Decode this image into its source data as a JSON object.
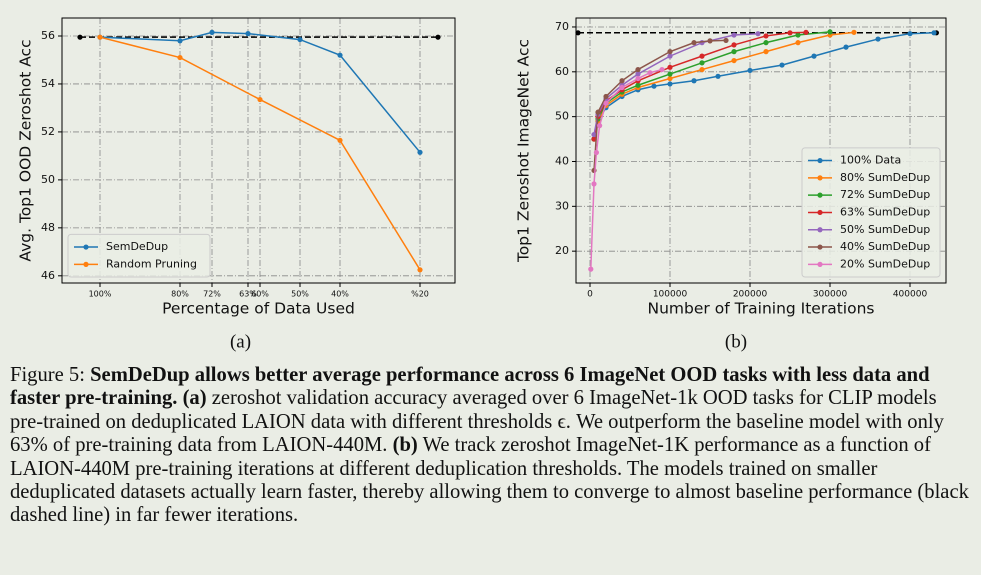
{
  "chart_data": [
    {
      "type": "line",
      "panel_label": "(a)",
      "xlabel": "Percentage of Data Used",
      "ylabel": "Avg. Top1 OOD Zeroshot Acc",
      "xlim": [
        109.5,
        11.25
      ],
      "ylim": [
        45.7,
        56.75
      ],
      "xticks": [
        {
          "value": 100,
          "label": "100%"
        },
        {
          "value": 80,
          "label": "80%"
        },
        {
          "value": 72,
          "label": "72%"
        },
        {
          "value": 63,
          "label": "63%"
        },
        {
          "value": 60,
          "label": "60%"
        },
        {
          "value": 50,
          "label": "50%"
        },
        {
          "value": 40,
          "label": "40%"
        },
        {
          "value": 20,
          "label": "%20"
        }
      ],
      "yticks": [
        46,
        48,
        50,
        52,
        54,
        56
      ],
      "grid": true,
      "legend": "lower left",
      "hline": {
        "y": 55.95,
        "x": [
          105,
          15.5
        ],
        "color": "#000000"
      },
      "series": [
        {
          "name": "SemDeDup",
          "color": "#1f77b4",
          "x": [
            100,
            80,
            72,
            63,
            50,
            40,
            20
          ],
          "values": [
            55.95,
            55.8,
            56.15,
            56.1,
            55.85,
            55.2,
            51.15
          ]
        },
        {
          "name": "Random Pruning",
          "color": "#ff7f0e",
          "x": [
            100,
            80,
            60,
            40,
            20
          ],
          "values": [
            55.95,
            55.1,
            53.35,
            51.65,
            46.25
          ]
        }
      ]
    },
    {
      "type": "line",
      "panel_label": "(b)",
      "xlabel": "Number of Training Iterations",
      "ylabel": "Top1 Zeroshot ImageNet Acc",
      "xlim": [
        -17500,
        445000
      ],
      "ylim": [
        12.9,
        72
      ],
      "xticks": [
        0,
        100000,
        200000,
        300000,
        400000
      ],
      "yticks": [
        20,
        30,
        40,
        50,
        60,
        70
      ],
      "grid": true,
      "legend": "lower right",
      "hline": {
        "y": 68.7,
        "x": [
          -15000,
          433000
        ],
        "color": "#000000"
      },
      "series": [
        {
          "name": "100% Data",
          "color": "#1f77b4",
          "x": [
            5000,
            10000,
            20000,
            40000,
            60000,
            80000,
            100000,
            130000,
            160000,
            200000,
            240000,
            280000,
            320000,
            360000,
            400000,
            430000
          ],
          "values": [
            45,
            49,
            52,
            54.5,
            56,
            56.8,
            57.3,
            58,
            59,
            60.3,
            61.5,
            63.5,
            65.5,
            67.3,
            68.5,
            68.7
          ]
        },
        {
          "name": "80% SumDeDup",
          "color": "#ff7f0e",
          "x": [
            5000,
            10000,
            20000,
            40000,
            60000,
            100000,
            140000,
            180000,
            220000,
            260000,
            300000,
            330000
          ],
          "values": [
            45,
            49,
            52.5,
            55,
            56.5,
            58.5,
            60.5,
            62.5,
            64.5,
            66.5,
            68.2,
            68.8
          ]
        },
        {
          "name": "72% SumDeDup",
          "color": "#2ca02c",
          "x": [
            5000,
            10000,
            20000,
            40000,
            60000,
            100000,
            140000,
            180000,
            220000,
            260000,
            300000
          ],
          "values": [
            45,
            49.5,
            53,
            55.5,
            57,
            59.5,
            62,
            64.5,
            66.5,
            68.2,
            68.9
          ]
        },
        {
          "name": "63% SumDeDup",
          "color": "#d62728",
          "x": [
            5000,
            10000,
            20000,
            40000,
            60000,
            100000,
            140000,
            180000,
            220000,
            250000,
            270000
          ],
          "values": [
            45,
            50,
            53.5,
            56,
            58,
            61,
            63.5,
            66,
            68,
            68.7,
            68.8
          ]
        },
        {
          "name": "50% SumDeDup",
          "color": "#9467bd",
          "x": [
            5000,
            10000,
            20000,
            40000,
            60000,
            100000,
            140000,
            180000,
            210000
          ],
          "values": [
            46,
            50.5,
            54,
            57,
            59.5,
            63.5,
            66.5,
            68.2,
            68.5
          ]
        },
        {
          "name": "40% SumDeDup",
          "color": "#8c564b",
          "x": [
            5000,
            10000,
            20000,
            40000,
            60000,
            100000,
            130000,
            150000,
            170000
          ],
          "values": [
            38,
            51,
            54.5,
            58,
            60.5,
            64.5,
            66.5,
            66.9,
            67
          ]
        },
        {
          "name": "20% SumDeDup",
          "color": "#e377c2",
          "x": [
            1000,
            5000,
            8000,
            12000,
            20000,
            40000,
            60000,
            75000,
            90000
          ],
          "values": [
            16,
            35,
            42,
            48,
            53,
            56.5,
            58.5,
            59.8,
            60.5
          ]
        }
      ]
    }
  ],
  "caption": {
    "label": "Figure 5:",
    "title": "SemDeDup allows better average performance across 6 ImageNet OOD tasks with less data and faster pre-training.",
    "parts": [
      {
        "tag": "(a)",
        "text": "zeroshot validation accuracy averaged over 6 ImageNet-1k OOD tasks for CLIP models pre-trained on deduplicated LAION data with different thresholds ϵ. We outperform the baseline model with only 63% of pre-training data from LAION-440M."
      },
      {
        "tag": "(b)",
        "text": "We track zeroshot ImageNet-1K performance as a function of LAION-440M pre-training iterations at different deduplication thresholds. The models trained on smaller deduplicated datasets actually learn faster, thereby allowing them to converge to almost baseline performance (black dashed line) in far fewer iterations."
      }
    ]
  }
}
